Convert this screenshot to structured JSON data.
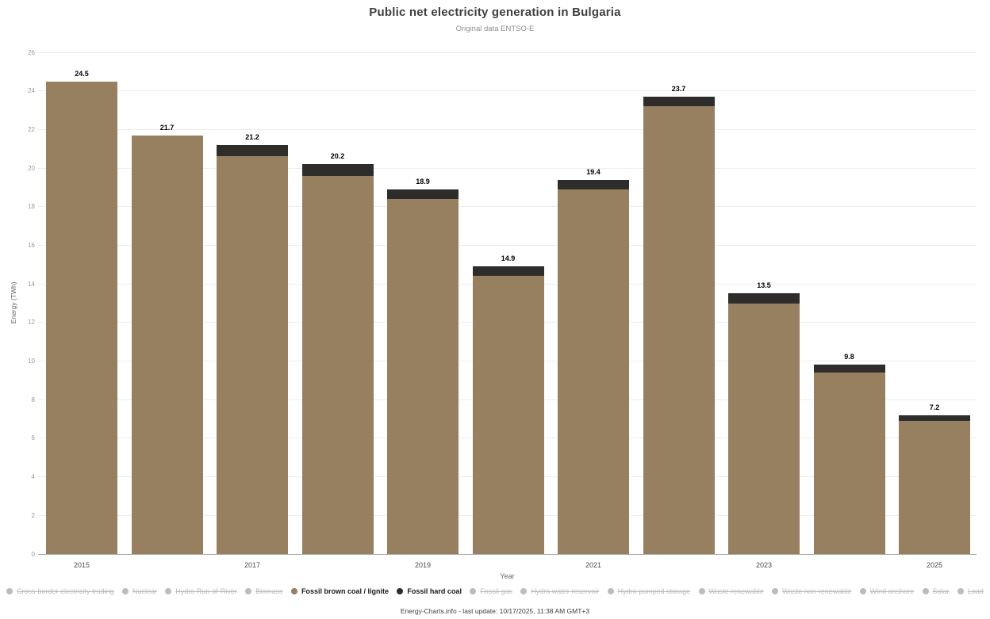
{
  "header": {
    "title": "Public net electricity generation in Bulgaria",
    "subtitle": "Original data ENTSO-E"
  },
  "chart_data": {
    "type": "bar",
    "stacked": true,
    "title": "Public net electricity generation in Bulgaria",
    "subtitle": "Original data ENTSO-E",
    "xlabel": "Year",
    "ylabel": "Energy (TWh)",
    "ylim": [
      0,
      26
    ],
    "y_ticks": [
      0,
      2,
      4,
      6,
      8,
      10,
      12,
      14,
      16,
      18,
      20,
      22,
      24,
      26
    ],
    "grid": true,
    "legend_position": "bottom",
    "categories": [
      "2015",
      "2016",
      "2017",
      "2018",
      "2019",
      "2020",
      "2021",
      "2022",
      "2023",
      "2024",
      "2025"
    ],
    "x_tick_labels": [
      "2015",
      "2017",
      "2019",
      "2021",
      "2023",
      "2025"
    ],
    "series": [
      {
        "name": "Fossil brown coal / lignite",
        "color": "#97805f",
        "values": [
          24.5,
          21.7,
          20.6,
          19.6,
          18.4,
          14.4,
          18.9,
          23.2,
          13.0,
          9.4,
          6.9
        ]
      },
      {
        "name": "Fossil hard coal",
        "color": "#2f2d2b",
        "values": [
          0,
          0,
          0.6,
          0.6,
          0.5,
          0.5,
          0.5,
          0.5,
          0.5,
          0.4,
          0.3
        ]
      }
    ],
    "stack_total_labels": [
      "24.5",
      "21.7",
      "21.2",
      "20.2",
      "18.9",
      "14.9",
      "19.4",
      "23.7",
      "13.5",
      "9.8",
      "7.2"
    ]
  },
  "legend": {
    "inactive_color": "#bcbcbc",
    "items": [
      {
        "label": "Cross-border electricity trading",
        "slug": "cross-border-electricity-trading",
        "active": false
      },
      {
        "label": "Nuclear",
        "slug": "nuclear",
        "active": false
      },
      {
        "label": "Hydro Run-of-River",
        "slug": "hydro-run-of-river",
        "active": false
      },
      {
        "label": "Biomass",
        "slug": "biomass",
        "active": false
      },
      {
        "label": "Fossil brown coal / lignite",
        "slug": "fossil-brown-coal-lignite",
        "active": true,
        "color": "#97805f"
      },
      {
        "label": "Fossil hard coal",
        "slug": "fossil-hard-coal",
        "active": true,
        "color": "#2f2d2b"
      },
      {
        "label": "Fossil gas",
        "slug": "fossil-gas",
        "active": false
      },
      {
        "label": "Hydro water reservoir",
        "slug": "hydro-water-reservoir",
        "active": false
      },
      {
        "label": "Hydro pumped storage",
        "slug": "hydro-pumped-storage",
        "active": false
      },
      {
        "label": "Waste renewable",
        "slug": "waste-renewable",
        "active": false
      },
      {
        "label": "Waste non-renewable",
        "slug": "waste-non-renewable",
        "active": false
      },
      {
        "label": "Wind onshore",
        "slug": "wind-onshore",
        "active": false
      },
      {
        "label": "Solar",
        "slug": "solar",
        "active": false
      },
      {
        "label": "Load",
        "slug": "load",
        "active": false
      }
    ]
  },
  "footer": {
    "credit": "Energy-Charts.info - last update: 10/17/2025, 11:38 AM GMT+3"
  }
}
